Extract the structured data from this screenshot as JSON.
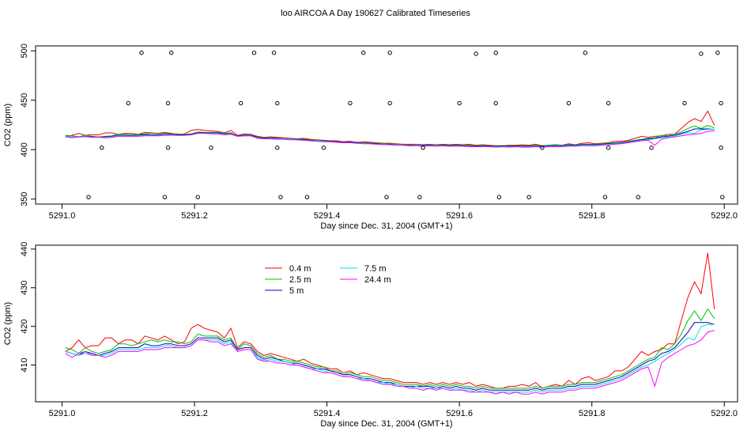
{
  "title": "loo AIRCOA A  Day 190627  Calibrated Timeseries",
  "chart_data": [
    {
      "type": "scatter",
      "xlabel": "Day since Dec. 31, 2004 (GMT+1)",
      "ylabel": "CO2 (ppm)",
      "xlim": [
        5290.96,
        5292.02
      ],
      "ylim": [
        345,
        505
      ],
      "xticks": [
        "5291.0",
        "5291.2",
        "5291.4",
        "5291.6",
        "5291.8",
        "5292.0"
      ],
      "yticks": [
        "350",
        "400",
        "450",
        "500"
      ],
      "grid": false,
      "flag_points": {
        "x": [
          5291.04,
          5291.06,
          5291.1,
          5291.12,
          5291.155,
          5291.16,
          5291.16,
          5291.165,
          5291.205,
          5291.225,
          5291.27,
          5291.29,
          5291.32,
          5291.325,
          5291.325,
          5291.33,
          5291.37,
          5291.395,
          5291.435,
          5291.455,
          5291.49,
          5291.495,
          5291.495,
          5291.54,
          5291.545,
          5291.6,
          5291.625,
          5291.655,
          5291.655,
          5291.66,
          5291.705,
          5291.725,
          5291.765,
          5291.79,
          5291.82,
          5291.825,
          5291.825,
          5291.87,
          5291.89,
          5291.94,
          5291.965,
          5291.99,
          5291.995,
          5291.995,
          5291.997
        ],
        "y": [
          352,
          402,
          447,
          498,
          352,
          402,
          447,
          498,
          352,
          402,
          447,
          498,
          498,
          447,
          402,
          352,
          352,
          402,
          447,
          498,
          352,
          498,
          447,
          352,
          402,
          447,
          497,
          498,
          447,
          352,
          352,
          402,
          447,
          498,
          352,
          402,
          447,
          352,
          402,
          447,
          497,
          498,
          447,
          402,
          352
        ]
      },
      "series": [
        {
          "name": "0.4 m",
          "color": "#ff0000"
        },
        {
          "name": "2.5 m",
          "color": "#00c000"
        },
        {
          "name": "5 m",
          "color": "#0000c0"
        },
        {
          "name": "7.5 m",
          "color": "#00e0e0"
        },
        {
          "name": "24.4 m",
          "color": "#ff00ff"
        }
      ]
    },
    {
      "type": "line",
      "xlabel": "Day since Dec. 31, 2004 (GMT+1)",
      "ylabel": "CO2 (ppm)",
      "xlim": [
        5290.96,
        5292.02
      ],
      "ylim": [
        400.5,
        441
      ],
      "xticks": [
        "5291.0",
        "5291.2",
        "5291.4",
        "5291.6",
        "5291.8",
        "5292.0"
      ],
      "yticks": [
        "410",
        "420",
        "430",
        "440"
      ],
      "grid": false,
      "legend_position": "top-left",
      "x": [
        5291.005,
        5291.015,
        5291.025,
        5291.035,
        5291.045,
        5291.055,
        5291.065,
        5291.075,
        5291.085,
        5291.095,
        5291.105,
        5291.115,
        5291.125,
        5291.135,
        5291.145,
        5291.155,
        5291.165,
        5291.175,
        5291.185,
        5291.195,
        5291.205,
        5291.215,
        5291.225,
        5291.235,
        5291.245,
        5291.255,
        5291.265,
        5291.275,
        5291.285,
        5291.295,
        5291.305,
        5291.315,
        5291.325,
        5291.335,
        5291.345,
        5291.355,
        5291.365,
        5291.375,
        5291.385,
        5291.395,
        5291.405,
        5291.415,
        5291.425,
        5291.435,
        5291.445,
        5291.455,
        5291.465,
        5291.475,
        5291.485,
        5291.495,
        5291.505,
        5291.515,
        5291.525,
        5291.535,
        5291.545,
        5291.555,
        5291.565,
        5291.575,
        5291.585,
        5291.595,
        5291.605,
        5291.615,
        5291.625,
        5291.635,
        5291.645,
        5291.655,
        5291.665,
        5291.675,
        5291.685,
        5291.695,
        5291.705,
        5291.715,
        5291.725,
        5291.735,
        5291.745,
        5291.755,
        5291.765,
        5291.775,
        5291.785,
        5291.795,
        5291.805,
        5291.815,
        5291.825,
        5291.835,
        5291.845,
        5291.855,
        5291.865,
        5291.875,
        5291.885,
        5291.895,
        5291.905,
        5291.915,
        5291.925,
        5291.935,
        5291.945,
        5291.955,
        5291.965,
        5291.975,
        5291.985
      ],
      "series": [
        {
          "name": "0.4 m",
          "color": "#ff0000",
          "values": [
            413.5,
            414.5,
            416.5,
            414.5,
            415.0,
            415.0,
            417.0,
            417.0,
            415.5,
            416.5,
            416.5,
            415.5,
            417.5,
            417.0,
            416.5,
            417.5,
            416.5,
            415.5,
            416.0,
            419.5,
            420.5,
            419.5,
            419.0,
            418.5,
            417.0,
            419.5,
            414.5,
            416.0,
            415.5,
            413.5,
            412.5,
            413.0,
            412.5,
            412.0,
            411.5,
            411.0,
            411.5,
            410.5,
            410.0,
            409.5,
            409.0,
            409.0,
            408.0,
            408.5,
            407.5,
            408.0,
            407.5,
            407.0,
            406.5,
            406.5,
            406.0,
            405.5,
            405.5,
            405.5,
            405.0,
            405.5,
            405.0,
            405.5,
            405.0,
            405.5,
            405.0,
            405.5,
            404.5,
            405.0,
            404.5,
            404.0,
            404.0,
            404.5,
            404.5,
            405.0,
            404.5,
            405.5,
            404.0,
            404.5,
            405.0,
            404.5,
            406.0,
            405.0,
            406.5,
            407.0,
            406.0,
            406.5,
            407.0,
            408.5,
            408.5,
            409.5,
            411.5,
            413.5,
            412.5,
            413.5,
            414.0,
            415.5,
            415.5,
            421.5,
            427.5,
            431.5,
            428.5,
            439.0,
            424.5
          ]
        },
        {
          "name": "2.5 m",
          "color": "#00c000",
          "values": [
            414.5,
            414.0,
            413.0,
            414.5,
            413.5,
            413.0,
            413.5,
            414.0,
            415.5,
            415.5,
            415.0,
            415.5,
            416.0,
            416.5,
            416.0,
            416.5,
            416.0,
            416.0,
            415.5,
            416.0,
            418.0,
            417.5,
            417.5,
            417.5,
            416.5,
            417.0,
            414.0,
            415.5,
            415.0,
            413.0,
            412.0,
            412.5,
            411.5,
            411.5,
            411.0,
            411.0,
            410.5,
            410.0,
            409.5,
            409.5,
            408.5,
            408.5,
            407.5,
            408.0,
            407.5,
            407.0,
            407.0,
            406.5,
            406.0,
            406.0,
            405.5,
            405.0,
            405.0,
            405.0,
            404.5,
            405.0,
            404.5,
            405.0,
            404.5,
            405.0,
            404.5,
            404.5,
            404.0,
            404.5,
            404.0,
            404.0,
            404.0,
            404.0,
            404.0,
            404.0,
            404.0,
            404.5,
            404.0,
            404.5,
            404.5,
            404.5,
            405.0,
            405.0,
            405.5,
            405.5,
            405.5,
            406.0,
            406.5,
            407.0,
            407.5,
            408.5,
            409.5,
            410.5,
            411.5,
            412.0,
            414.5,
            414.0,
            415.5,
            418.0,
            421.5,
            424.0,
            421.5,
            424.5,
            422.0
          ]
        },
        {
          "name": "5 m",
          "color": "#0000c0",
          "values": [
            413.5,
            413.0,
            412.5,
            413.5,
            413.0,
            412.5,
            413.0,
            413.5,
            414.5,
            414.5,
            414.5,
            414.5,
            415.5,
            415.0,
            415.0,
            415.5,
            415.5,
            415.0,
            415.0,
            415.5,
            417.0,
            417.0,
            417.0,
            417.0,
            416.0,
            416.5,
            414.0,
            414.5,
            414.5,
            412.5,
            411.5,
            412.0,
            411.5,
            411.0,
            410.5,
            410.5,
            410.0,
            409.5,
            409.0,
            409.0,
            408.5,
            408.0,
            407.5,
            407.5,
            407.0,
            406.5,
            406.5,
            406.0,
            405.5,
            405.5,
            405.0,
            404.5,
            404.5,
            404.5,
            404.5,
            404.5,
            404.0,
            404.5,
            404.0,
            404.5,
            404.0,
            404.0,
            403.5,
            404.0,
            403.5,
            403.5,
            403.5,
            403.5,
            403.5,
            403.5,
            403.5,
            404.0,
            403.5,
            404.0,
            404.0,
            404.0,
            404.5,
            404.5,
            405.0,
            405.0,
            405.0,
            405.5,
            406.0,
            406.5,
            407.0,
            408.0,
            409.0,
            410.0,
            411.0,
            411.5,
            413.0,
            413.5,
            414.5,
            416.5,
            418.5,
            421.0,
            421.0,
            421.0,
            420.5
          ]
        },
        {
          "name": "7.5 m",
          "color": "#00e0e0",
          "values": [
            413.5,
            413.0,
            412.5,
            413.0,
            412.5,
            412.5,
            412.5,
            413.0,
            414.0,
            414.0,
            414.0,
            414.0,
            414.5,
            414.5,
            414.5,
            415.0,
            415.0,
            414.5,
            414.5,
            415.0,
            416.5,
            416.5,
            416.5,
            416.5,
            415.5,
            416.0,
            413.5,
            414.0,
            414.0,
            412.0,
            411.0,
            411.5,
            411.0,
            411.0,
            410.5,
            410.0,
            409.5,
            409.0,
            409.0,
            408.5,
            408.0,
            407.5,
            407.0,
            407.0,
            406.5,
            406.5,
            406.0,
            405.5,
            405.5,
            405.0,
            405.0,
            404.5,
            404.0,
            404.5,
            404.0,
            404.0,
            404.0,
            404.0,
            403.5,
            404.0,
            403.5,
            403.5,
            403.0,
            403.5,
            403.0,
            403.0,
            403.0,
            403.0,
            403.0,
            403.0,
            403.0,
            403.5,
            403.0,
            403.5,
            403.5,
            403.5,
            404.0,
            404.0,
            404.5,
            404.5,
            404.5,
            405.0,
            405.5,
            406.0,
            406.5,
            407.5,
            408.5,
            409.5,
            410.0,
            411.0,
            412.0,
            413.0,
            414.0,
            415.5,
            417.0,
            416.5,
            420.0,
            420.5,
            420.5
          ]
        },
        {
          "name": "24.4 m",
          "color": "#ff00ff",
          "values": [
            413.0,
            412.0,
            413.0,
            413.5,
            412.5,
            412.5,
            412.0,
            412.5,
            413.5,
            413.5,
            413.5,
            413.5,
            414.0,
            414.0,
            414.0,
            414.5,
            414.5,
            414.5,
            414.5,
            415.0,
            416.5,
            416.5,
            416.0,
            416.0,
            415.0,
            415.5,
            413.5,
            414.0,
            414.0,
            411.5,
            411.0,
            411.0,
            410.5,
            410.5,
            410.0,
            410.0,
            409.5,
            409.0,
            408.5,
            408.0,
            408.0,
            407.5,
            407.0,
            407.0,
            406.5,
            406.0,
            406.0,
            405.5,
            405.0,
            405.0,
            404.5,
            404.5,
            404.0,
            404.0,
            403.5,
            404.0,
            403.5,
            404.0,
            403.5,
            403.5,
            403.5,
            403.0,
            403.0,
            403.0,
            403.0,
            402.5,
            403.0,
            402.5,
            403.0,
            402.5,
            402.5,
            403.0,
            402.5,
            403.0,
            403.0,
            403.0,
            403.5,
            403.5,
            404.0,
            404.0,
            404.0,
            404.5,
            405.0,
            405.5,
            406.0,
            407.0,
            408.0,
            409.0,
            409.5,
            404.5,
            410.5,
            412.0,
            413.0,
            414.0,
            415.0,
            415.5,
            416.5,
            418.5,
            419.0
          ]
        }
      ]
    }
  ]
}
